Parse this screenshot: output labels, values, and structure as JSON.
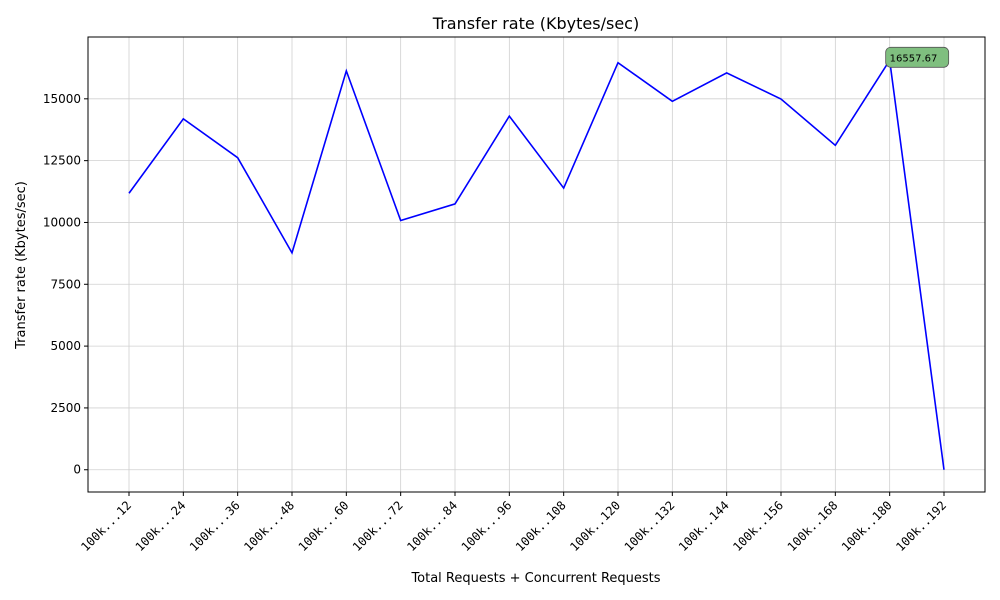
{
  "chart_data": {
    "type": "line",
    "title": "Transfer rate (Kbytes/sec)",
    "xlabel": "Total Requests + Concurrent Requests",
    "ylabel": "Transfer rate (Kbytes/sec)",
    "categories": [
      "100k...12",
      "100k...24",
      "100k...36",
      "100k...48",
      "100k...60",
      "100k...72",
      "100k...84",
      "100k...96",
      "100k..108",
      "100k..120",
      "100k..132",
      "100k..144",
      "100k..156",
      "100k..168",
      "100k..180",
      "100k..192"
    ],
    "series": [
      {
        "values": [
          11180,
          14190,
          12620,
          8770,
          16130,
          10080,
          10750,
          14300,
          11390,
          16460,
          14900,
          16050,
          14990,
          13120,
          16557.67,
          0
        ],
        "color": "#0000ff"
      }
    ],
    "yticks": [
      0,
      2500,
      5000,
      7500,
      10000,
      12500,
      15000
    ],
    "ylim": [
      -900,
      17500
    ],
    "grid": true,
    "annotation": {
      "text": "16557.67",
      "category_index": 14,
      "value": 16557.67,
      "marker_color": "#008000",
      "box_color": "#7fbf7f"
    }
  }
}
